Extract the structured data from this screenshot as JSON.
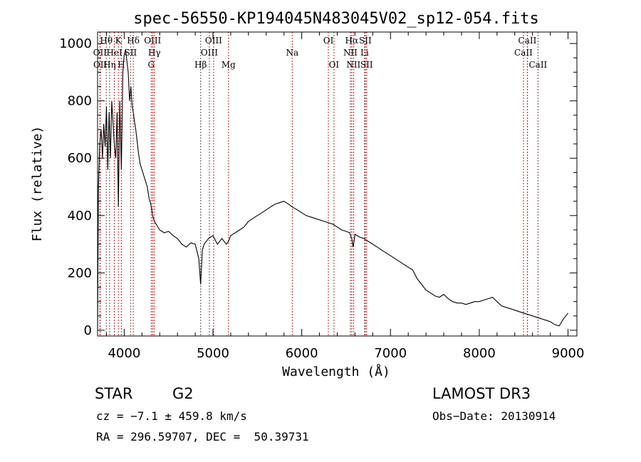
{
  "chart_data": {
    "type": "line",
    "title": "spec-56550-KP194045N483045V02_sp12-054.fits",
    "xlabel": "Wavelength (Å)",
    "ylabel": "Flux (relative)",
    "xlim": [
      3700,
      9100
    ],
    "ylim": [
      -20,
      1040
    ],
    "xticks": [
      4000,
      5000,
      6000,
      7000,
      8000,
      9000
    ],
    "yticks": [
      0,
      200,
      400,
      600,
      800,
      1000
    ],
    "series": [
      {
        "name": "flux",
        "x": [
          3700,
          3710,
          3725,
          3740,
          3755,
          3770,
          3785,
          3800,
          3815,
          3830,
          3845,
          3860,
          3875,
          3890,
          3905,
          3920,
          3934,
          3950,
          3968,
          3985,
          4000,
          4015,
          4030,
          4045,
          4060,
          4075,
          4090,
          4102,
          4115,
          4130,
          4145,
          4160,
          4180,
          4200,
          4220,
          4240,
          4260,
          4280,
          4300,
          4320,
          4340,
          4360,
          4380,
          4400,
          4450,
          4500,
          4550,
          4600,
          4650,
          4700,
          4750,
          4800,
          4840,
          4861,
          4880,
          4900,
          4950,
          5000,
          5050,
          5100,
          5150,
          5175,
          5200,
          5250,
          5300,
          5350,
          5400,
          5450,
          5500,
          5550,
          5600,
          5650,
          5700,
          5750,
          5800,
          5850,
          5893,
          5950,
          6000,
          6050,
          6100,
          6150,
          6200,
          6250,
          6300,
          6350,
          6400,
          6450,
          6500,
          6540,
          6563,
          6580,
          6600,
          6650,
          6700,
          6750,
          6800,
          6850,
          6900,
          6950,
          7000,
          7050,
          7100,
          7150,
          7200,
          7250,
          7300,
          7350,
          7400,
          7450,
          7500,
          7550,
          7600,
          7650,
          7700,
          7750,
          7800,
          7850,
          7900,
          7950,
          8000,
          8050,
          8100,
          8150,
          8200,
          8250,
          8300,
          8350,
          8400,
          8450,
          8500,
          8550,
          8600,
          8650,
          8700,
          8750,
          8800,
          8850,
          8900,
          8950,
          9000
        ],
        "y": [
          0,
          500,
          650,
          700,
          600,
          720,
          640,
          780,
          560,
          760,
          600,
          800,
          720,
          640,
          600,
          760,
          430,
          800,
          560,
          900,
          960,
          980,
          940,
          900,
          800,
          850,
          780,
          760,
          730,
          700,
          660,
          620,
          580,
          560,
          540,
          520,
          500,
          460,
          440,
          400,
          380,
          370,
          360,
          350,
          340,
          345,
          330,
          320,
          300,
          290,
          305,
          300,
          250,
          160,
          280,
          300,
          320,
          330,
          300,
          320,
          300,
          310,
          330,
          340,
          350,
          360,
          380,
          390,
          400,
          410,
          420,
          430,
          440,
          445,
          450,
          440,
          430,
          420,
          410,
          400,
          395,
          390,
          385,
          380,
          375,
          370,
          360,
          350,
          345,
          340,
          320,
          290,
          335,
          325,
          320,
          310,
          300,
          290,
          280,
          270,
          260,
          250,
          240,
          230,
          220,
          210,
          180,
          160,
          140,
          130,
          120,
          115,
          125,
          110,
          100,
          95,
          95,
          90,
          95,
          100,
          100,
          105,
          110,
          115,
          100,
          85,
          80,
          75,
          70,
          65,
          60,
          55,
          50,
          45,
          40,
          35,
          30,
          20,
          15,
          40,
          60
        ]
      }
    ],
    "lines": [
      {
        "name": "OII",
        "wl": 3727,
        "row": 2
      },
      {
        "name": "OII",
        "wl": 3729,
        "row": 3
      },
      {
        "name": "Hθ",
        "wl": 3798,
        "row": 1
      },
      {
        "name": "Hη",
        "wl": 3835,
        "row": 3
      },
      {
        "name": "HeI",
        "wl": 3889,
        "row": 2
      },
      {
        "name": "K",
        "wl": 3934,
        "row": 1
      },
      {
        "name": "H",
        "wl": 3968,
        "row": 3
      },
      {
        "name": "SII",
        "wl": 4072,
        "row": 2
      },
      {
        "name": "Hδ",
        "wl": 4102,
        "row": 1
      },
      {
        "name": "G",
        "wl": 4304,
        "row": 3
      },
      {
        "name": "OIII",
        "wl": 4320,
        "row": 1
      },
      {
        "name": "Hγ",
        "wl": 4340,
        "row": 2
      },
      {
        "name": "Hβ",
        "wl": 4861,
        "row": 3
      },
      {
        "name": "OIII",
        "wl": 4959,
        "row": 2
      },
      {
        "name": "OIII",
        "wl": 5007,
        "row": 1
      },
      {
        "name": "Mg",
        "wl": 5175,
        "row": 3
      },
      {
        "name": "Na",
        "wl": 5893,
        "row": 2
      },
      {
        "name": "OI",
        "wl": 6300,
        "row": 1
      },
      {
        "name": "OI",
        "wl": 6363,
        "row": 3
      },
      {
        "name": "NII",
        "wl": 6548,
        "row": 2
      },
      {
        "name": "Hα",
        "wl": 6563,
        "row": 1
      },
      {
        "name": "NII",
        "wl": 6583,
        "row": 3
      },
      {
        "name": "SII",
        "wl": 6716,
        "row": 1
      },
      {
        "name": "Li",
        "wl": 6708,
        "row": 2
      },
      {
        "name": "SII",
        "wl": 6731,
        "row": 3
      },
      {
        "name": "CaII",
        "wl": 8498,
        "row": 2
      },
      {
        "name": "CaII",
        "wl": 8542,
        "row": 1
      },
      {
        "name": "CaII",
        "wl": 8662,
        "row": 3
      }
    ]
  },
  "info": {
    "object_class": "STAR",
    "subclass": "G2",
    "survey": "LAMOST DR3",
    "cz": "cz = −7.1 ± 459.8 km/s",
    "obs_date": "Obs−Date: 20130914",
    "coords": "RA = 296.59707, DEC =  50.39731"
  },
  "colors": {
    "line_marker": "#cc2222",
    "spectrum": "#000000"
  }
}
